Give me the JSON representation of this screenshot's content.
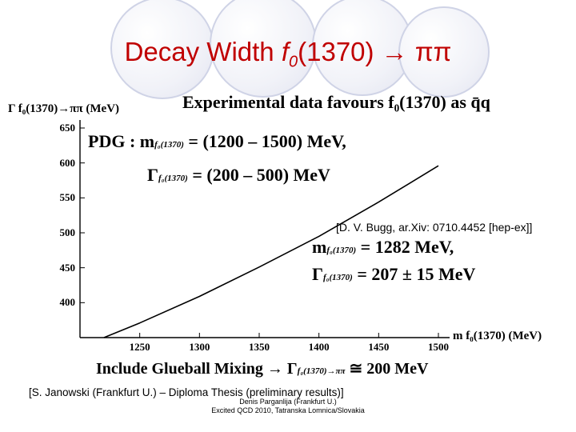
{
  "slide": {
    "title_prefix": "Decay Width ",
    "title_f": "f",
    "title_sub": "0",
    "title_rest": "(1370) → ππ",
    "footer_line1": "[S. Janowski (Frankfurt U.) – Diploma Thesis (preliminary results)]",
    "footer_line2": "Denis Parganlija (Frankfurt U.)",
    "footer_line3": "Excited QCD 2010, Tatranska Lomnica/Slovakia"
  },
  "annotations": {
    "experimental": "Experimental data favours f₀(1370) as q̄q",
    "pdg_mass_lhs": "PDG : m",
    "pdg_mass_sub": "f₀(1370)",
    "pdg_mass_rhs": "= (1200 – 1500) MeV,",
    "pdg_width_lhs": "Γ",
    "pdg_width_sub": "f₀(1370)",
    "pdg_width_rhs": "= (200 – 500) MeV",
    "bugg_ref": "[D. V. Bugg, ar.Xiv: 0710.4452 [hep-ex]]",
    "bugg_mass_lhs": "m",
    "bugg_mass_sub": "f₀(1370)",
    "bugg_mass_rhs": "= 1282 MeV,",
    "bugg_width_lhs": "Γ",
    "bugg_width_sub": "f₀(1370)",
    "bugg_width_rhs": "= 207 ± 15 MeV",
    "glueball_lhs": "Include Glueball Mixing → Γ",
    "glueball_sub": "f₀(1370)→ππ",
    "glueball_rhs": " ≅ 200 MeV"
  },
  "chart_data": {
    "type": "line",
    "ylabel": "Γ f₀(1370)→ππ (MeV)",
    "xlabel": "m f₀(1370) (MeV)",
    "xlim": [
      1200,
      1500
    ],
    "ylim": [
      350,
      650
    ],
    "xticks": [
      1250,
      1300,
      1350,
      1400,
      1450,
      1500
    ],
    "yticks": [
      400,
      450,
      500,
      550,
      600,
      650
    ],
    "grid": false,
    "series": [
      {
        "x": [
          1220,
          1250,
          1300,
          1350,
          1400,
          1450,
          1500
        ],
        "y": [
          350,
          371,
          409,
          451,
          495,
          544,
          596
        ]
      }
    ],
    "colors": {
      "line": "#000000",
      "axis": "#000000"
    }
  }
}
